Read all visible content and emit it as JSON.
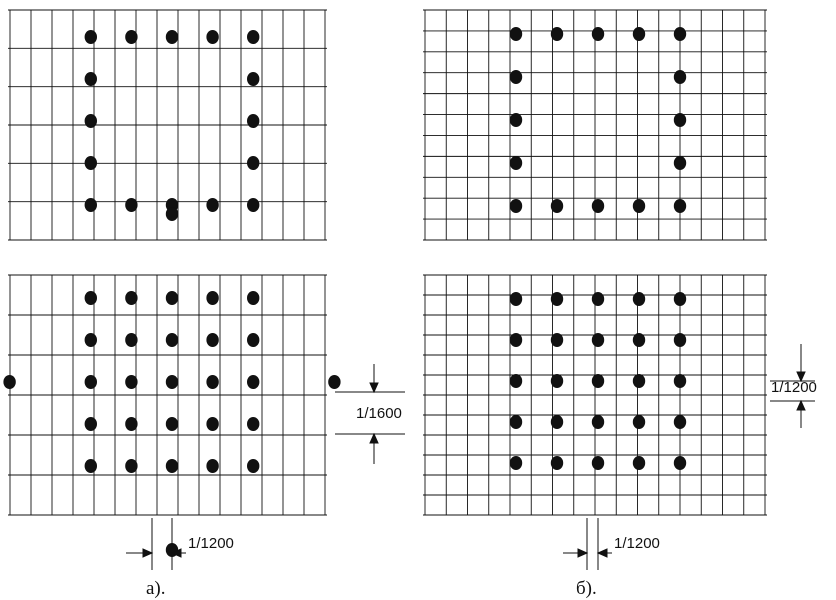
{
  "panels": [
    {
      "id": "a-top",
      "pattern": "ring",
      "vstep": 1600
    },
    {
      "id": "a-bottom",
      "pattern": "checker",
      "vstep": 1600
    },
    {
      "id": "b-top",
      "pattern": "ring",
      "vstep": 1200
    },
    {
      "id": "b-bottom",
      "pattern": "full",
      "vstep": 1200
    }
  ],
  "dimensions": {
    "a_vertical": "1/1600",
    "a_horizontal": "1/1200",
    "b_vertical": "1/1200",
    "b_horizontal": "1/1200"
  },
  "captions": {
    "a": "а).",
    "b": "б)."
  },
  "colors": {
    "ink": "#111111",
    "background": "#ffffff"
  }
}
